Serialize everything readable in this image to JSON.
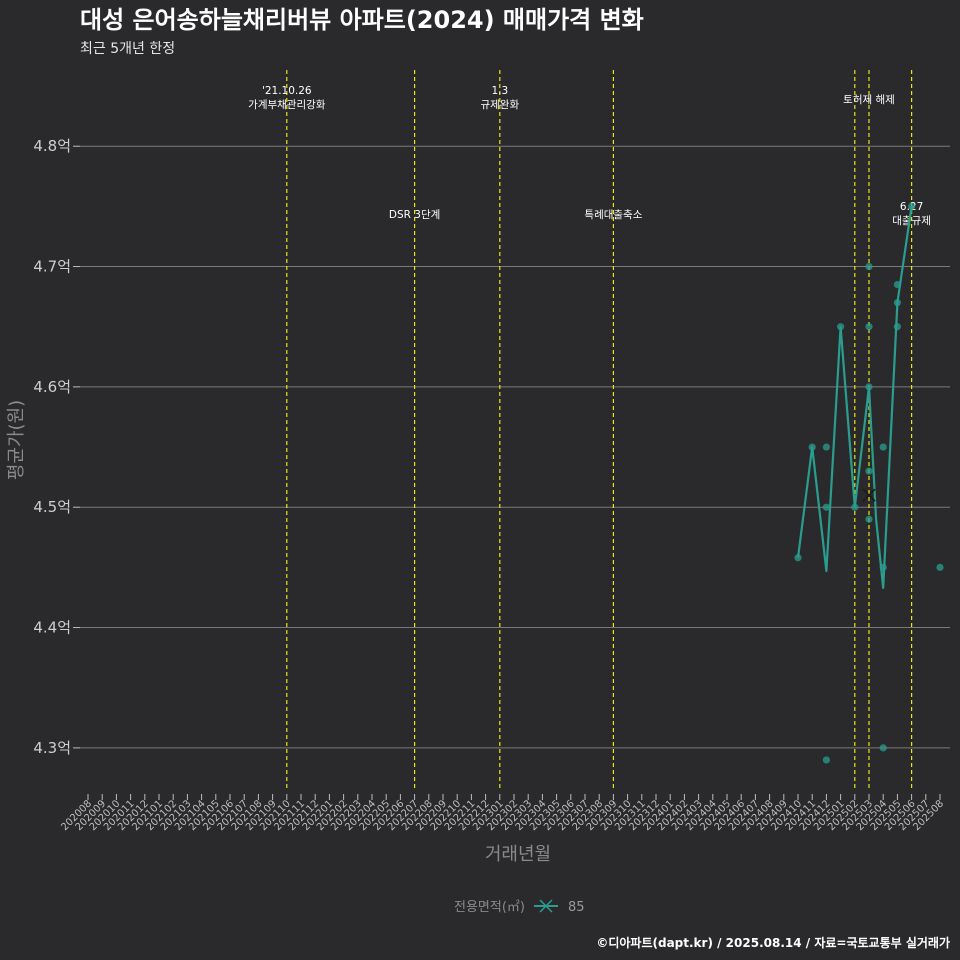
{
  "chart_data": {
    "type": "line",
    "title": "대성 은어송하늘채리버뷰 아파트(2024) 매매가격 변화",
    "subtitle": "최근 5개년 한정",
    "xlabel": "거래년월",
    "ylabel": "평균가(원)",
    "ylim": [
      4.265,
      4.865
    ],
    "y_ticks": [
      {
        "value": 4.3,
        "label": "4.3억"
      },
      {
        "value": 4.4,
        "label": "4.4억"
      },
      {
        "value": 4.5,
        "label": "4.5억"
      },
      {
        "value": 4.6,
        "label": "4.6억"
      },
      {
        "value": 4.7,
        "label": "4.7억"
      },
      {
        "value": 4.8,
        "label": "4.8억"
      }
    ],
    "categories": [
      "202008",
      "202009",
      "202010",
      "202011",
      "202012",
      "202101",
      "202102",
      "202103",
      "202104",
      "202105",
      "202106",
      "202107",
      "202108",
      "202109",
      "202110",
      "202111",
      "202112",
      "202201",
      "202202",
      "202203",
      "202204",
      "202205",
      "202206",
      "202207",
      "202208",
      "202209",
      "202210",
      "202211",
      "202212",
      "202301",
      "202302",
      "202303",
      "202304",
      "202305",
      "202306",
      "202307",
      "202308",
      "202309",
      "202310",
      "202311",
      "202312",
      "202401",
      "202402",
      "202403",
      "202404",
      "202405",
      "202406",
      "202407",
      "202408",
      "202409",
      "202410",
      "202411",
      "202412",
      "202501",
      "202502",
      "202503",
      "202504",
      "202505",
      "202506",
      "202507",
      "202508"
    ],
    "series": [
      {
        "name": "85",
        "color": "#2a9d8f",
        "line": [
          {
            "x": 50.0,
            "y": 4.458
          },
          {
            "x": 51.0,
            "y": 4.55
          },
          {
            "x": 52.0,
            "y": 4.447
          },
          {
            "x": 53.0,
            "y": 4.65
          },
          {
            "x": 54.0,
            "y": 4.5
          },
          {
            "x": 55.0,
            "y": 4.6
          },
          {
            "x": 55.5,
            "y": 4.49
          },
          {
            "x": 56.0,
            "y": 4.433
          },
          {
            "x": 57.0,
            "y": 4.67
          },
          {
            "x": 58.0,
            "y": 4.75
          }
        ],
        "points": [
          {
            "x": 50.0,
            "y": 4.458
          },
          {
            "x": 51.0,
            "y": 4.55
          },
          {
            "x": 52.0,
            "y": 4.29
          },
          {
            "x": 52.0,
            "y": 4.5
          },
          {
            "x": 52.0,
            "y": 4.55
          },
          {
            "x": 53.0,
            "y": 4.65
          },
          {
            "x": 54.0,
            "y": 4.5
          },
          {
            "x": 55.0,
            "y": 4.49
          },
          {
            "x": 55.0,
            "y": 4.53
          },
          {
            "x": 55.0,
            "y": 4.6
          },
          {
            "x": 55.0,
            "y": 4.65
          },
          {
            "x": 55.0,
            "y": 4.7
          },
          {
            "x": 56.0,
            "y": 4.3
          },
          {
            "x": 56.0,
            "y": 4.45
          },
          {
            "x": 56.0,
            "y": 4.55
          },
          {
            "x": 57.0,
            "y": 4.65
          },
          {
            "x": 57.0,
            "y": 4.67
          },
          {
            "x": 57.0,
            "y": 4.685
          },
          {
            "x": 58.0,
            "y": 4.75
          },
          {
            "x": 60.0,
            "y": 4.45
          }
        ],
        "markers": [
          {
            "x": 55.0,
            "y": 4.51,
            "symbol": "x"
          }
        ]
      }
    ],
    "events": [
      {
        "x": 14.0,
        "lines": [
          "'21.10.26",
          "가계부채관리강화"
        ],
        "level": "high"
      },
      {
        "x": 23.0,
        "lines": [
          "DSR 3단계"
        ],
        "level": "low"
      },
      {
        "x": 29.0,
        "lines": [
          "1.3",
          "규제완화"
        ],
        "level": "high"
      },
      {
        "x": 37.0,
        "lines": [
          "특례대출축소"
        ],
        "level": "low"
      },
      {
        "x": 54.0,
        "lines": [],
        "level": "high"
      },
      {
        "x": 55.0,
        "lines": [
          "토허제 해제"
        ],
        "level": "mid"
      },
      {
        "x": 58.0,
        "lines": [
          "6.27",
          "대출규제"
        ],
        "level": "low"
      }
    ],
    "event_line_color": "#e6e619",
    "grid_color": "#7a7a7a",
    "legend": {
      "title": "전용면적(㎡)",
      "entries": [
        {
          "label": "85",
          "color": "#2a9d8f"
        }
      ],
      "position": "bottom"
    },
    "caption": "©디아파트(dapt.kr) / 2025.08.14 / 자료=국토교통부 실거래가"
  }
}
